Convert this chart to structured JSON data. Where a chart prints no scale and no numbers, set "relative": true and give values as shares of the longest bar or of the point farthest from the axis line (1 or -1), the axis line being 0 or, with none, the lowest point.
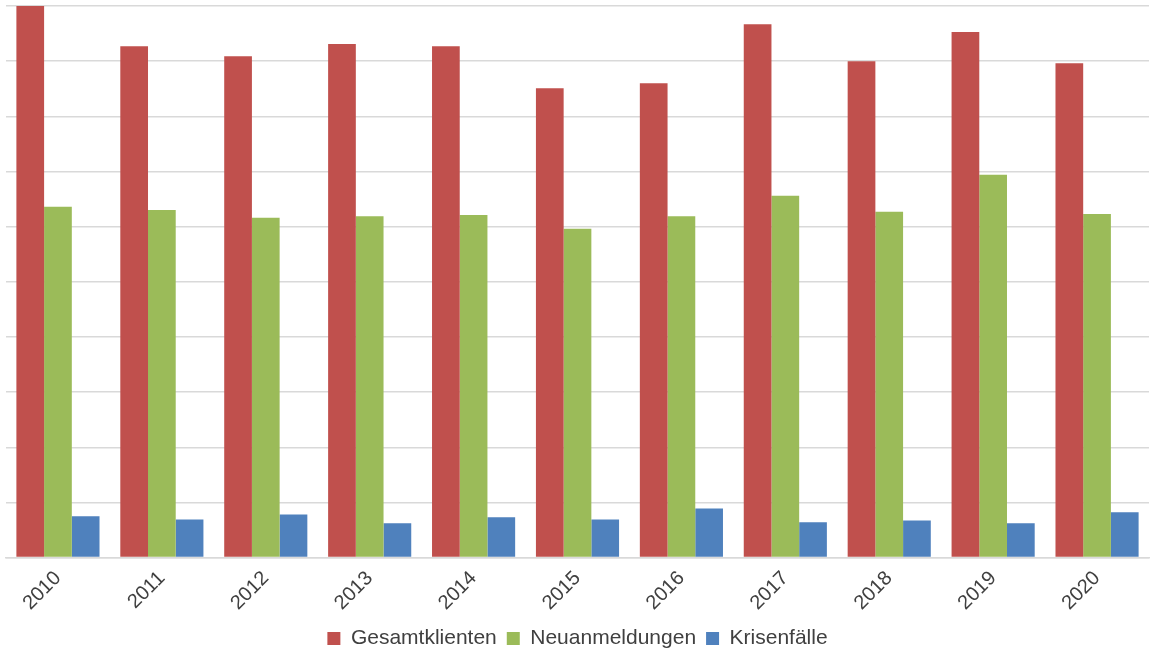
{
  "chart_data": {
    "type": "bar",
    "relative": true,
    "grid": "y",
    "legend": "bottom",
    "categories": [
      "2010",
      "2011",
      "2012",
      "2013",
      "2014",
      "2015",
      "2016",
      "2017",
      "2018",
      "2019",
      "2020"
    ],
    "series": [
      {
        "name": "Gesamtklienten",
        "color": "#c0504d",
        "values": [
          1,
          0.927,
          0.909,
          0.931,
          0.927,
          0.851,
          0.86,
          0.967,
          0.9,
          0.953,
          0.896
        ]
      },
      {
        "name": "Neuanmeldungen",
        "color": "#9bbb59",
        "values": [
          0.636,
          0.63,
          0.616,
          0.619,
          0.621,
          0.596,
          0.619,
          0.656,
          0.627,
          0.694,
          0.623
        ]
      },
      {
        "name": "Krisenfälle",
        "color": "#4f81bd",
        "values": [
          0.075,
          0.069,
          0.078,
          0.062,
          0.073,
          0.069,
          0.089,
          0.064,
          0.067,
          0.062,
          0.082
        ]
      }
    ]
  }
}
